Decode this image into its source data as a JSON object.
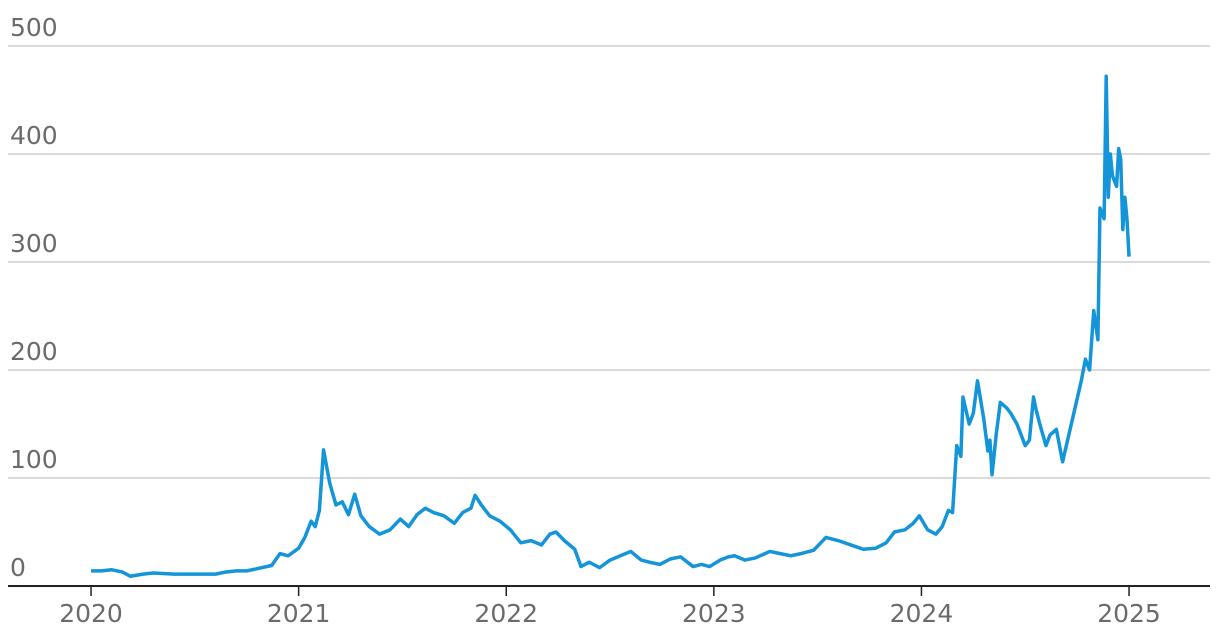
{
  "chart_data": {
    "type": "line",
    "color": "#1495da",
    "x": [
      2020.0,
      2020.05,
      2020.1,
      2020.15,
      2020.19,
      2020.25,
      2020.3,
      2020.4,
      2020.5,
      2020.6,
      2020.65,
      2020.7,
      2020.75,
      2020.8,
      2020.87,
      2020.91,
      2020.95,
      2021.0,
      2021.03,
      2021.06,
      2021.08,
      2021.1,
      2021.12,
      2021.15,
      2021.18,
      2021.21,
      2021.24,
      2021.27,
      2021.3,
      2021.34,
      2021.39,
      2021.44,
      2021.49,
      2021.53,
      2021.57,
      2021.61,
      2021.65,
      2021.7,
      2021.75,
      2021.79,
      2021.83,
      2021.85,
      2021.88,
      2021.92,
      2021.97,
      2022.02,
      2022.07,
      2022.12,
      2022.17,
      2022.21,
      2022.24,
      2022.28,
      2022.33,
      2022.36,
      2022.4,
      2022.45,
      2022.5,
      2022.55,
      2022.6,
      2022.65,
      2022.69,
      2022.74,
      2022.79,
      2022.84,
      2022.9,
      2022.94,
      2022.98,
      2023.03,
      2023.07,
      2023.1,
      2023.15,
      2023.2,
      2023.27,
      2023.32,
      2023.37,
      2023.42,
      2023.48,
      2023.54,
      2023.6,
      2023.66,
      2023.72,
      2023.78,
      2023.83,
      2023.87,
      2023.92,
      2023.96,
      2023.99,
      2024.03,
      2024.07,
      2024.1,
      2024.13,
      2024.15,
      2024.17,
      2024.19,
      2024.2,
      2024.23,
      2024.25,
      2024.27,
      2024.3,
      2024.32,
      2024.33,
      2024.34,
      2024.36,
      2024.38,
      2024.41,
      2024.43,
      2024.46,
      2024.48,
      2024.5,
      2024.52,
      2024.54,
      2024.55,
      2024.57,
      2024.6,
      2024.62,
      2024.65,
      2024.68,
      2024.71,
      2024.74,
      2024.77,
      2024.79,
      2024.81,
      2024.83,
      2024.85,
      2024.86,
      2024.88,
      2024.89,
      2024.9,
      2024.91,
      2024.92,
      2024.94,
      2024.95,
      2024.96,
      2024.97,
      2024.98,
      2024.99,
      2025.0
    ],
    "values": [
      14,
      14,
      15,
      13,
      9,
      11,
      12,
      11,
      11,
      11,
      13,
      14,
      14,
      16,
      19,
      30,
      28,
      35,
      45,
      60,
      55,
      70,
      126,
      95,
      75,
      78,
      66,
      85,
      65,
      55,
      48,
      52,
      62,
      55,
      66,
      72,
      68,
      65,
      58,
      68,
      72,
      84,
      75,
      65,
      60,
      52,
      40,
      42,
      38,
      48,
      50,
      42,
      34,
      18,
      22,
      17,
      24,
      28,
      32,
      24,
      22,
      20,
      25,
      27,
      18,
      20,
      18,
      24,
      27,
      28,
      24,
      26,
      32,
      30,
      28,
      30,
      33,
      45,
      42,
      38,
      34,
      35,
      40,
      50,
      52,
      58,
      65,
      52,
      48,
      55,
      70,
      68,
      130,
      120,
      175,
      150,
      160,
      190,
      155,
      125,
      135,
      103,
      140,
      170,
      165,
      160,
      150,
      140,
      130,
      135,
      175,
      165,
      150,
      130,
      140,
      145,
      115,
      140,
      165,
      190,
      210,
      200,
      255,
      228,
      350,
      340,
      472,
      360,
      400,
      380,
      370,
      405,
      395,
      330,
      360,
      340,
      305
    ],
    "xlim": [
      2019.6,
      2025.39
    ],
    "xticks": [
      2020,
      2021,
      2022,
      2023,
      2024,
      2025
    ],
    "ylim": [
      0,
      500
    ],
    "yticks": [
      0,
      100,
      200,
      300,
      400,
      500
    ],
    "grid": true
  }
}
